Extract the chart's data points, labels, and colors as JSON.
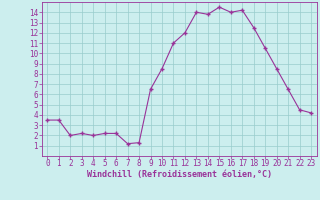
{
  "x": [
    0,
    1,
    2,
    3,
    4,
    5,
    6,
    7,
    8,
    9,
    10,
    11,
    12,
    13,
    14,
    15,
    16,
    17,
    18,
    19,
    20,
    21,
    22,
    23
  ],
  "y": [
    3.5,
    3.5,
    2.0,
    2.2,
    2.0,
    2.2,
    2.2,
    1.2,
    1.3,
    6.5,
    8.5,
    11.0,
    12.0,
    14.0,
    13.8,
    14.5,
    14.0,
    14.2,
    12.5,
    10.5,
    8.5,
    6.5,
    4.5,
    4.2
  ],
  "line_color": "#993399",
  "marker": "+",
  "bg_color": "#cceeee",
  "grid_color": "#99cccc",
  "axis_color": "#993399",
  "xlabel": "Windchill (Refroidissement éolien,°C)",
  "xlabel_color": "#993399",
  "tick_color": "#993399",
  "ylim": [
    0,
    15
  ],
  "xlim": [
    -0.5,
    23.5
  ],
  "yticks": [
    1,
    2,
    3,
    4,
    5,
    6,
    7,
    8,
    9,
    10,
    11,
    12,
    13,
    14
  ],
  "xticks": [
    0,
    1,
    2,
    3,
    4,
    5,
    6,
    7,
    8,
    9,
    10,
    11,
    12,
    13,
    14,
    15,
    16,
    17,
    18,
    19,
    20,
    21,
    22,
    23
  ],
  "tick_fontsize": 5.5,
  "xlabel_fontsize": 6.0
}
